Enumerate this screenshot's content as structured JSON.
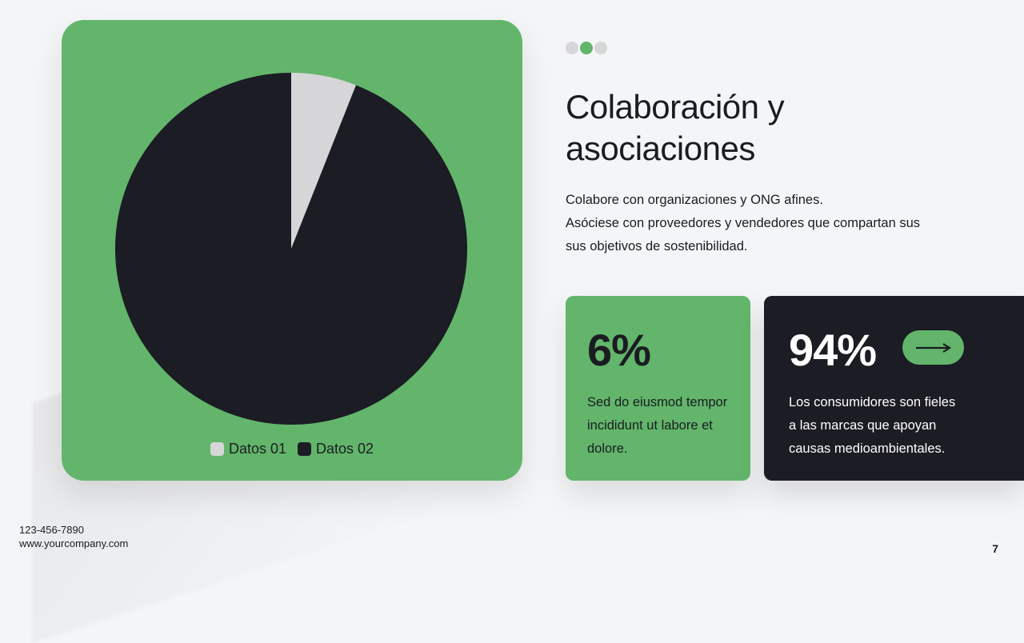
{
  "slide": {
    "title_lines": [
      "Colaboración y",
      "asociaciones"
    ],
    "description_lines": [
      "Colabore con organizaciones y ONG afines.",
      "Asóciese con proveedores y vendedores que compartan sus",
      "sus objetivos de sostenibilidad."
    ],
    "page_number": "7"
  },
  "indicator": {
    "count": 3,
    "active_index": 1
  },
  "stats": {
    "left": {
      "value": "6%",
      "text_lines": [
        "Sed do eiusmod tempor",
        "incididunt ut labore et",
        "dolore."
      ]
    },
    "right": {
      "value": "94%",
      "text_lines": [
        "Los consumidores son fieles",
        "a las marcas que apoyan",
        "causas medioambientales."
      ],
      "button_icon": "arrow-right-icon"
    }
  },
  "footer": {
    "phone": "123-456-7890",
    "website": "www.yourcompany.com"
  },
  "colors": {
    "accent_green": "#62b56b",
    "dark": "#1b1c24",
    "light_gray": "#d6d6d8",
    "background": "#f4f5f7"
  },
  "chart_data": {
    "type": "pie",
    "title": "",
    "categories": [
      "Datos 01",
      "Datos 02"
    ],
    "values": [
      6,
      94
    ],
    "colors": [
      "#d6d6d8",
      "#1b1c24"
    ],
    "legend_position": "bottom"
  }
}
